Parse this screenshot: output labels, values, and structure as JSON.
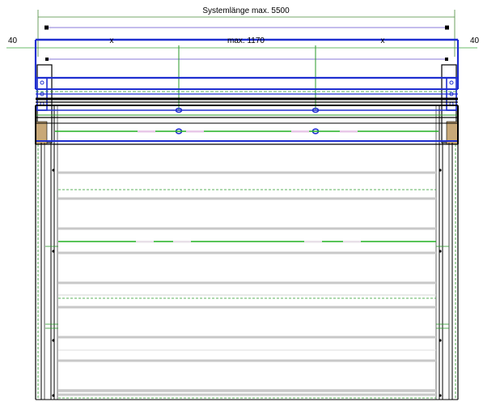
{
  "drawing": {
    "dimensions": {
      "system_length": "Systemlänge max. 5500",
      "left_offset": "40",
      "right_offset": "40",
      "center_span": "max. 1170",
      "left_span": "x",
      "right_span": "x"
    }
  }
}
